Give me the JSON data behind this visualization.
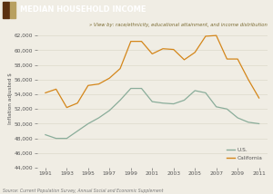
{
  "title": "MEDIAN HOUSEHOLD INCOME",
  "subtitle": "» View by: race/ethnicity, educational attainment, and income distribution",
  "ylabel": "Inflation adjusted $",
  "source": "Source: Current Population Survey, Annual Social and Economic Supplement",
  "years": [
    1991,
    1992,
    1993,
    1994,
    1995,
    1996,
    1997,
    1998,
    1999,
    2000,
    2001,
    2002,
    2003,
    2004,
    2005,
    2006,
    2007,
    2008,
    2009,
    2010,
    2011
  ],
  "us_values": [
    48500,
    48000,
    48000,
    49000,
    50000,
    50800,
    51800,
    53200,
    54800,
    54800,
    53000,
    52800,
    52700,
    53200,
    54500,
    54200,
    52300,
    52000,
    50800,
    50200,
    50000
  ],
  "ca_values": [
    54200,
    54700,
    52200,
    52800,
    55200,
    55400,
    56200,
    57500,
    61200,
    61200,
    59500,
    60200,
    60100,
    58700,
    59700,
    61900,
    62000,
    58800,
    58800,
    56000,
    53500
  ],
  "us_color": "#8aad9a",
  "ca_color": "#d4861a",
  "ylim": [
    44000,
    63000
  ],
  "yticks": [
    44000,
    46000,
    48000,
    50000,
    52000,
    54000,
    56000,
    58000,
    60000,
    62000
  ],
  "xticks": [
    1991,
    1993,
    1995,
    1997,
    1999,
    2001,
    2003,
    2005,
    2007,
    2009,
    2011
  ],
  "bg_color": "#f0ede4",
  "header_bg": "#8c9e7e",
  "title_color": "#ffffff",
  "subtitle_color": "#7a6a30",
  "tick_color": "#555555",
  "grid_color": "#d8d4c4",
  "source_color": "#777777",
  "legend_color": "#555555",
  "sq1_color": "#5a3010",
  "sq2_color": "#b8a060"
}
